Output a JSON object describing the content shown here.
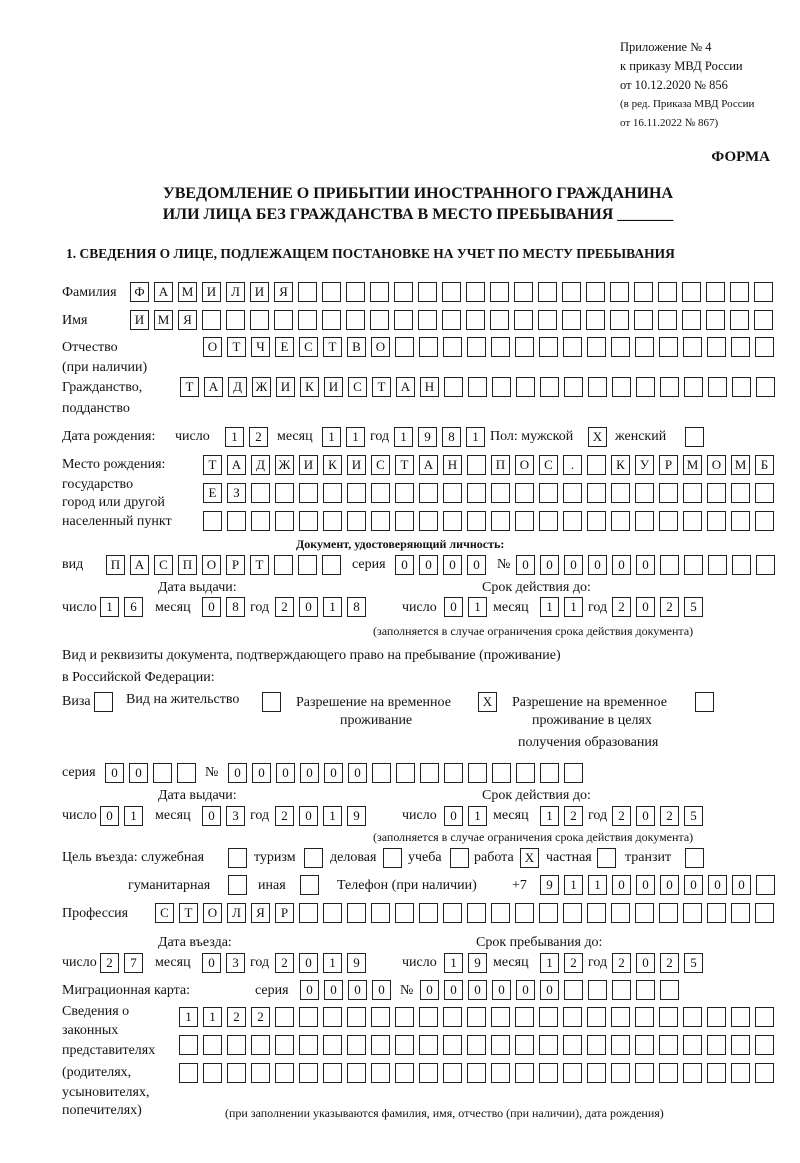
{
  "header": {
    "appendix": "Приложение № 4",
    "order": "к приказу МВД России",
    "order_date": "от 10.12.2020 № 856",
    "edition1": "(в ред. Приказа МВД России",
    "edition2": "от 16.11.2022 № 867)",
    "form_label": "ФОРМА",
    "title1": "УВЕДОМЛЕНИЕ О ПРИБЫТИИ ИНОСТРАННОГО ГРАЖДАНИНА",
    "title2": "ИЛИ ЛИЦА БЕЗ ГРАЖДАНСТВА В МЕСТО ПРЕБЫВАНИЯ _______",
    "section1": "1. СВЕДЕНИЯ О ЛИЦЕ, ПОДЛЕЖАЩЕМ ПОСТАНОВКЕ НА УЧЕТ ПО МЕСТУ ПРЕБЫВАНИЯ"
  },
  "labels": {
    "surname": "Фамилия",
    "name": "Имя",
    "patronymic": "Отчество",
    "patronymic2": "(при наличии)",
    "citizenship": "Гражданство,",
    "citizenship2": "подданство",
    "birth_date": "Дата рождения:",
    "day": "число",
    "month": "месяц",
    "year": "год",
    "sex": "Пол: мужской",
    "female": "женский",
    "birthplace1": "Место рождения:",
    "birthplace2": "государство",
    "birthplace3": "город или другой",
    "birthplace4": "населенный пункт",
    "id_doc": "Документ, удостоверяющий личность:",
    "kind": "вид",
    "series": "серия",
    "number": "№",
    "issue_date": "Дата выдачи:",
    "valid_until": "Срок действия до:",
    "valid_note": "(заполняется в случае ограничения срока действия документа)",
    "right_doc1": "Вид и реквизиты документа, подтверждающего право на пребывание (проживание)",
    "right_doc2": "в Российской Федерации:",
    "visa": "Виза",
    "residence": "Вид на жительство",
    "trp1": "Разрешение на временное",
    "trp2": "проживание",
    "trpe1": "Разрешение на временное",
    "trpe2": "проживание в целях",
    "trpe3": "получения образования",
    "purpose": "Цель въезда: служебная",
    "tourism": "туризм",
    "business": "деловая",
    "study": "учеба",
    "work": "работа",
    "private": "частная",
    "transit": "транзит",
    "humanitarian": "гуманитарная",
    "other": "иная",
    "phone": "Телефон (при наличии)",
    "phone_prefix": "+7",
    "profession": "Профессия",
    "entry_date": "Дата въезда:",
    "stay_until": "Срок пребывания до:",
    "migration_card": "Миграционная карта:",
    "rep1": "Сведения о",
    "rep2": "законных",
    "rep3": "представителях",
    "rep4": "(родителях,",
    "rep5": "усыновителях,",
    "rep6": "попечителях)",
    "rep_note": "(при заполнении указываются фамилия, имя, отчество (при наличии), дата рождения)"
  },
  "fields": {
    "surname": [
      "Ф",
      "А",
      "М",
      "И",
      "Л",
      "И",
      "Я"
    ],
    "name": [
      "И",
      "М",
      "Я"
    ],
    "patronymic": [
      "О",
      "Т",
      "Ч",
      "Е",
      "С",
      "Т",
      "В",
      "О"
    ],
    "citizenship": [
      "Т",
      "А",
      "Д",
      "Ж",
      "И",
      "К",
      "И",
      "С",
      "Т",
      "А",
      "Н"
    ],
    "birth_day": [
      "1",
      "2"
    ],
    "birth_month": [
      "1",
      "1"
    ],
    "birth_year": [
      "1",
      "9",
      "8",
      "1"
    ],
    "sex_male": [
      "X"
    ],
    "sex_female": [
      ""
    ],
    "birthplace_1": [
      "Т",
      "А",
      "Д",
      "Ж",
      "И",
      "К",
      "И",
      "С",
      "Т",
      "А",
      "Н",
      "",
      "П",
      "О",
      "С",
      ".",
      "",
      "К",
      "У",
      "Р",
      "М",
      "О",
      "М",
      "Б"
    ],
    "birthplace_2": [
      "Е",
      "З"
    ],
    "birthplace_3": [],
    "doc_kind": [
      "П",
      "А",
      "С",
      "П",
      "О",
      "Р",
      "Т"
    ],
    "doc_series": [
      "0",
      "0",
      "0",
      "0"
    ],
    "doc_number": [
      "0",
      "0",
      "0",
      "0",
      "0",
      "0"
    ],
    "doc_issue_day": [
      "1",
      "6"
    ],
    "doc_issue_month": [
      "0",
      "8"
    ],
    "doc_issue_year": [
      "2",
      "0",
      "1",
      "8"
    ],
    "doc_valid_day": [
      "0",
      "1"
    ],
    "doc_valid_month": [
      "1",
      "1"
    ],
    "doc_valid_year": [
      "2",
      "0",
      "2",
      "5"
    ],
    "chk_visa": [
      ""
    ],
    "chk_residence": [
      ""
    ],
    "chk_trp": [
      "X"
    ],
    "chk_trpe": [
      ""
    ],
    "right_series": [
      "0",
      "0"
    ],
    "right_number": [
      "0",
      "0",
      "0",
      "0",
      "0",
      "0"
    ],
    "right_issue_day": [
      "0",
      "1"
    ],
    "right_issue_month": [
      "0",
      "3"
    ],
    "right_issue_year": [
      "2",
      "0",
      "1",
      "9"
    ],
    "right_valid_day": [
      "0",
      "1"
    ],
    "right_valid_month": [
      "1",
      "2"
    ],
    "right_valid_year": [
      "2",
      "0",
      "2",
      "5"
    ],
    "p_official": [
      ""
    ],
    "p_tourism": [
      ""
    ],
    "p_business": [
      ""
    ],
    "p_study": [
      ""
    ],
    "p_work": [
      "X"
    ],
    "p_private": [
      ""
    ],
    "p_transit": [
      ""
    ],
    "p_humanitarian": [
      ""
    ],
    "p_other": [
      ""
    ],
    "phone": [
      "9",
      "1",
      "1",
      "0",
      "0",
      "0",
      "0",
      "0",
      "0"
    ],
    "profession": [
      "С",
      "Т",
      "О",
      "Л",
      "Я",
      "Р"
    ],
    "entry_day": [
      "2",
      "7"
    ],
    "entry_month": [
      "0",
      "3"
    ],
    "entry_year": [
      "2",
      "0",
      "1",
      "9"
    ],
    "stay_day": [
      "1",
      "9"
    ],
    "stay_month": [
      "1",
      "2"
    ],
    "stay_year": [
      "2",
      "0",
      "2",
      "5"
    ],
    "mc_series": [
      "0",
      "0",
      "0",
      "0"
    ],
    "mc_number": [
      "0",
      "0",
      "0",
      "0",
      "0",
      "0"
    ],
    "rep_1": [
      "1",
      "1",
      "2",
      "2"
    ],
    "rep_2": [],
    "rep_3": []
  }
}
